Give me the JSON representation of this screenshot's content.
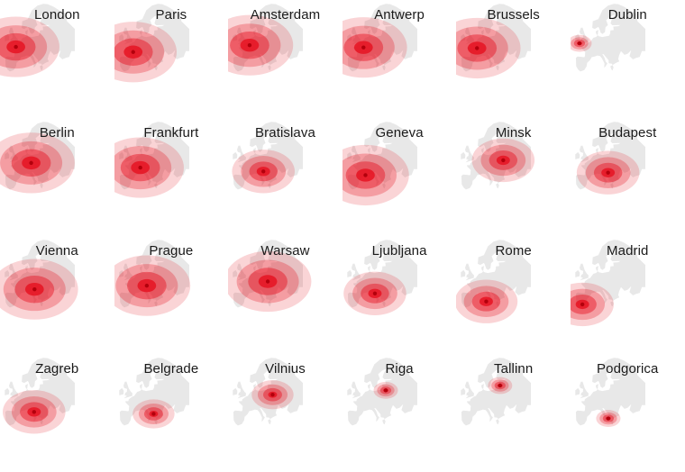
{
  "title": "",
  "base_color": "#e8e8e8",
  "accent_color": "#e60f1e",
  "cities": [
    {
      "name": "London",
      "lon": -0.12,
      "lat": 51.5,
      "spread": "wide"
    },
    {
      "name": "Paris",
      "lon": 2.35,
      "lat": 48.86,
      "spread": "wide"
    },
    {
      "name": "Amsterdam",
      "lon": 4.9,
      "lat": 52.37,
      "spread": "wide"
    },
    {
      "name": "Antwerp",
      "lon": 4.4,
      "lat": 51.22,
      "spread": "wide"
    },
    {
      "name": "Brussels",
      "lon": 4.35,
      "lat": 50.85,
      "spread": "wide"
    },
    {
      "name": "Dublin",
      "lon": -6.26,
      "lat": 53.35,
      "spread": "tiny"
    },
    {
      "name": "Berlin",
      "lon": 13.4,
      "lat": 52.52,
      "spread": "wide"
    },
    {
      "name": "Frankfurt",
      "lon": 8.68,
      "lat": 50.11,
      "spread": "wide"
    },
    {
      "name": "Bratislava",
      "lon": 17.1,
      "lat": 48.15,
      "spread": "medium"
    },
    {
      "name": "Geneva",
      "lon": 6.14,
      "lat": 46.2,
      "spread": "wide"
    },
    {
      "name": "Minsk",
      "lon": 27.56,
      "lat": 53.9,
      "spread": "medium"
    },
    {
      "name": "Budapest",
      "lon": 19.04,
      "lat": 47.5,
      "spread": "medium"
    },
    {
      "name": "Vienna",
      "lon": 16.37,
      "lat": 48.21,
      "spread": "wide"
    },
    {
      "name": "Prague",
      "lon": 14.42,
      "lat": 50.08,
      "spread": "wide"
    },
    {
      "name": "Warsaw",
      "lon": 21.0,
      "lat": 52.23,
      "spread": "wide"
    },
    {
      "name": "Ljubljana",
      "lon": 14.5,
      "lat": 46.05,
      "spread": "medium"
    },
    {
      "name": "Rome",
      "lon": 12.5,
      "lat": 41.9,
      "spread": "medium"
    },
    {
      "name": "Madrid",
      "lon": -3.7,
      "lat": 40.42,
      "spread": "medium"
    },
    {
      "name": "Zagreb",
      "lon": 15.98,
      "lat": 45.81,
      "spread": "medium"
    },
    {
      "name": "Belgrade",
      "lon": 20.46,
      "lat": 44.8,
      "spread": "small"
    },
    {
      "name": "Vilnius",
      "lon": 25.28,
      "lat": 54.69,
      "spread": "small"
    },
    {
      "name": "Riga",
      "lon": 24.1,
      "lat": 56.95,
      "spread": "tiny"
    },
    {
      "name": "Tallinn",
      "lon": 24.75,
      "lat": 59.44,
      "spread": "tiny"
    },
    {
      "name": "Podgorica",
      "lon": 19.26,
      "lat": 42.44,
      "spread": "tiny"
    }
  ]
}
